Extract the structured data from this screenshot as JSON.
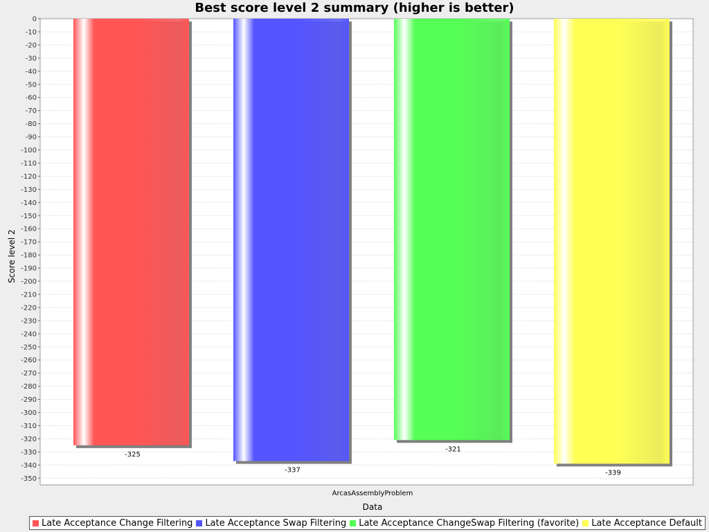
{
  "chart_data": {
    "type": "bar",
    "title": "Best score level 2 summary (higher is better)",
    "xlabel": "Data",
    "ylabel": "Score level 2",
    "categories": [
      "ArcasAssemblyProblem"
    ],
    "ylim": [
      -355,
      0
    ],
    "ytick_step": 10,
    "grid": true,
    "legend_position": "bottom",
    "series": [
      {
        "name": "Late Acceptance Change Filtering",
        "values": [
          -325
        ],
        "color": "#ff5555"
      },
      {
        "name": "Late Acceptance Swap Filtering",
        "values": [
          -337
        ],
        "color": "#5555ff"
      },
      {
        "name": "Late Acceptance ChangeSwap Filtering (favorite)",
        "values": [
          -321
        ],
        "color": "#55ff55"
      },
      {
        "name": "Late Acceptance Default",
        "values": [
          -339
        ],
        "color": "#ffff55"
      }
    ]
  }
}
